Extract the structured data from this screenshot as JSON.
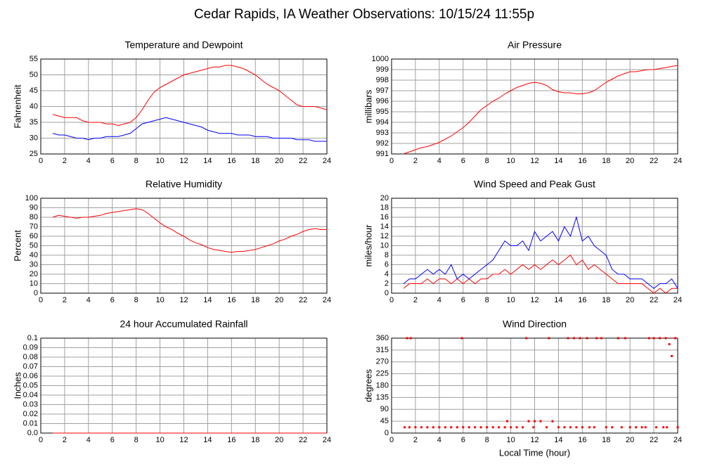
{
  "title": "Cedar Rapids, IA Weather Observations: 10/15/24 11:55p",
  "chart_data": [
    {
      "type": "line",
      "title": "Temperature and Dewpoint",
      "ylabel": "Fahrenheit",
      "x": [
        1,
        1.5,
        2,
        2.5,
        3,
        3.5,
        4,
        4.5,
        5,
        5.5,
        6,
        6.5,
        7,
        7.5,
        8,
        8.5,
        9,
        9.5,
        10,
        10.5,
        11,
        11.5,
        12,
        12.5,
        13,
        13.5,
        14,
        14.5,
        15,
        15.5,
        16,
        16.5,
        17,
        17.5,
        18,
        18.5,
        19,
        19.5,
        20,
        20.5,
        21,
        21.5,
        22,
        22.5,
        23,
        23.5,
        24
      ],
      "series": [
        {
          "color": "#ff0000",
          "values": [
            37.5,
            37,
            36.5,
            36.5,
            36.5,
            35.5,
            35,
            35,
            35,
            34.5,
            34.5,
            34,
            34.5,
            35,
            36.5,
            39,
            42,
            44.5,
            46,
            47,
            48,
            49,
            50,
            50.5,
            51,
            51.5,
            52,
            52.5,
            52.5,
            53,
            53,
            52.5,
            52,
            51,
            50,
            48.5,
            47,
            46,
            45,
            43.5,
            42,
            40.5,
            40,
            40,
            40,
            39.5,
            39
          ]
        },
        {
          "color": "#0000ff",
          "values": [
            31.5,
            31,
            31,
            30.5,
            30,
            30,
            29.5,
            30,
            30,
            30.5,
            30.5,
            30.5,
            31,
            31.5,
            33,
            34.5,
            35,
            35.5,
            36,
            36.5,
            36,
            35.5,
            35,
            34.5,
            34,
            33.5,
            32.5,
            32,
            31.5,
            31.5,
            31.5,
            31,
            31,
            31,
            30.5,
            30.5,
            30.5,
            30,
            30,
            30,
            30,
            29.5,
            29.5,
            29.5,
            29,
            29,
            29
          ]
        }
      ],
      "xlim": [
        0,
        24
      ],
      "xticks": [
        0,
        2,
        4,
        6,
        8,
        10,
        12,
        14,
        16,
        18,
        20,
        22,
        24
      ],
      "ylim": [
        25,
        55
      ],
      "yticks": [
        25,
        30,
        35,
        40,
        45,
        50,
        55
      ],
      "grid": true
    },
    {
      "type": "line",
      "title": "Air Pressure",
      "ylabel": "millibars",
      "x": [
        1,
        1.5,
        2,
        2.5,
        3,
        3.5,
        4,
        4.5,
        5,
        5.5,
        6,
        6.5,
        7,
        7.5,
        8,
        8.5,
        9,
        9.5,
        10,
        10.5,
        11,
        11.5,
        12,
        12.5,
        13,
        13.5,
        14,
        14.5,
        15,
        15.5,
        16,
        16.5,
        17,
        17.5,
        18,
        18.5,
        19,
        19.5,
        20,
        20.5,
        21,
        21.5,
        22,
        22.5,
        23,
        23.5,
        24
      ],
      "series": [
        {
          "color": "#ff0000",
          "values": [
            991,
            991.2,
            991.4,
            991.6,
            991.7,
            991.9,
            992.1,
            992.4,
            992.7,
            993.1,
            993.5,
            994,
            994.6,
            995.2,
            995.6,
            996,
            996.3,
            996.7,
            997,
            997.3,
            997.5,
            997.7,
            997.8,
            997.7,
            997.5,
            997.1,
            996.9,
            996.8,
            996.8,
            996.7,
            996.7,
            996.8,
            997,
            997.4,
            997.8,
            998.1,
            998.4,
            998.6,
            998.8,
            998.8,
            998.9,
            999,
            999,
            999.1,
            999.2,
            999.3,
            999.4
          ]
        }
      ],
      "xlim": [
        0,
        24
      ],
      "xticks": [
        0,
        2,
        4,
        6,
        8,
        10,
        12,
        14,
        16,
        18,
        20,
        22,
        24
      ],
      "ylim": [
        991,
        1000
      ],
      "yticks": [
        991,
        992,
        993,
        994,
        995,
        996,
        997,
        998,
        999,
        1000
      ],
      "grid": true
    },
    {
      "type": "line",
      "title": "Relative Humidity",
      "ylabel": "Percent",
      "x": [
        1,
        1.5,
        2,
        2.5,
        3,
        3.5,
        4,
        4.5,
        5,
        5.5,
        6,
        6.5,
        7,
        7.5,
        8,
        8.5,
        9,
        9.5,
        10,
        10.5,
        11,
        11.5,
        12,
        12.5,
        13,
        13.5,
        14,
        14.5,
        15,
        15.5,
        16,
        16.5,
        17,
        17.5,
        18,
        18.5,
        19,
        19.5,
        20,
        20.5,
        21,
        21.5,
        22,
        22.5,
        23,
        23.5,
        24
      ],
      "series": [
        {
          "color": "#ff0000",
          "values": [
            80,
            82,
            81,
            80,
            79,
            80,
            80,
            81,
            82,
            84,
            85,
            86,
            87,
            88,
            89,
            88,
            84,
            79,
            74,
            70,
            67,
            63,
            60,
            56,
            53,
            51,
            48,
            46,
            45,
            44,
            43,
            44,
            44,
            45,
            46,
            48,
            50,
            52,
            55,
            57,
            60,
            62,
            65,
            67,
            68,
            67,
            67
          ]
        }
      ],
      "xlim": [
        0,
        24
      ],
      "xticks": [
        0,
        2,
        4,
        6,
        8,
        10,
        12,
        14,
        16,
        18,
        20,
        22,
        24
      ],
      "ylim": [
        0,
        100
      ],
      "yticks": [
        0,
        10,
        20,
        30,
        40,
        50,
        60,
        70,
        80,
        90,
        100
      ],
      "grid": true
    },
    {
      "type": "line",
      "title": "Wind Speed and Peak Gust",
      "ylabel": "miles/hour",
      "x": [
        1,
        1.5,
        2,
        2.5,
        3,
        3.5,
        4,
        4.5,
        5,
        5.5,
        6,
        6.5,
        7,
        7.5,
        8,
        8.5,
        9,
        9.5,
        10,
        10.5,
        11,
        11.5,
        12,
        12.5,
        13,
        13.5,
        14,
        14.5,
        15,
        15.5,
        16,
        16.5,
        17,
        17.5,
        18,
        18.5,
        19,
        19.5,
        20,
        20.5,
        21,
        21.5,
        22,
        22.5,
        23,
        23.5,
        24
      ],
      "series": [
        {
          "color": "#ff0000",
          "values": [
            1,
            2,
            2,
            2,
            3,
            2,
            3,
            3,
            2,
            3,
            2,
            3,
            2,
            3,
            3,
            4,
            4,
            5,
            4,
            5,
            6,
            5,
            6,
            5,
            6,
            7,
            6,
            7,
            8,
            6,
            7,
            5,
            6,
            5,
            4,
            3,
            2,
            2,
            2,
            2,
            2,
            1,
            0,
            1,
            0,
            1,
            1
          ]
        },
        {
          "color": "#0000ff",
          "values": [
            2,
            3,
            3,
            4,
            5,
            4,
            5,
            4,
            6,
            3,
            4,
            3,
            4,
            5,
            6,
            7,
            9,
            11,
            10,
            10,
            11,
            9,
            13,
            11,
            12,
            13,
            11,
            14,
            12,
            16,
            11,
            12,
            10,
            9,
            8,
            5,
            4,
            4,
            3,
            3,
            3,
            2,
            1,
            2,
            2,
            3,
            1
          ]
        }
      ],
      "xlim": [
        0,
        24
      ],
      "xticks": [
        0,
        2,
        4,
        6,
        8,
        10,
        12,
        14,
        16,
        18,
        20,
        22,
        24
      ],
      "ylim": [
        0,
        20
      ],
      "yticks": [
        0,
        2,
        4,
        6,
        8,
        10,
        12,
        14,
        16,
        18,
        20
      ],
      "grid": true
    },
    {
      "type": "line",
      "title": "24 hour Accumulated Rainfall",
      "ylabel": "Inches",
      "x": [
        1,
        24
      ],
      "series": [
        {
          "color": "#ff0000",
          "values": [
            0,
            0
          ]
        }
      ],
      "xlim": [
        0,
        24
      ],
      "xticks": [
        0,
        2,
        4,
        6,
        8,
        10,
        12,
        14,
        16,
        18,
        20,
        22,
        24
      ],
      "ylim": [
        0,
        0.1
      ],
      "yticks": [
        {
          "value": 0,
          "label": "0.0"
        },
        0.01,
        0.02,
        0.03,
        0.04,
        0.05,
        0.06,
        0.07,
        0.08,
        0.09,
        0.1
      ],
      "grid": true
    },
    {
      "type": "scatter",
      "title": "Wind Direction",
      "ylabel": "degrees",
      "xlabel": "Local Time (hour)",
      "x": [
        1.1,
        1.3,
        1.5,
        1.6,
        2,
        2.5,
        3,
        3.5,
        4,
        4.5,
        5,
        5.5,
        5.9,
        6,
        6.5,
        7,
        7.5,
        8,
        8.5,
        9,
        9.5,
        9.7,
        10,
        10.5,
        11,
        11.3,
        11.5,
        11.9,
        12,
        12.5,
        13,
        13.2,
        13.5,
        14,
        14.5,
        14.8,
        15,
        15.3,
        15.5,
        15.8,
        16,
        16.4,
        16.6,
        17,
        17.2,
        17.6,
        18,
        18.5,
        19,
        19.3,
        19.6,
        20,
        20.5,
        21,
        21.3,
        21.6,
        22,
        22.2,
        22.5,
        22.8,
        23,
        23.1,
        23.3,
        23.5,
        23.8,
        24
      ],
      "values": [
        22,
        360,
        22,
        360,
        22,
        22,
        22,
        22,
        22,
        22,
        22,
        22,
        360,
        22,
        22,
        22,
        22,
        22,
        22,
        22,
        22,
        45,
        22,
        22,
        22,
        360,
        45,
        22,
        45,
        45,
        22,
        360,
        45,
        22,
        22,
        360,
        22,
        360,
        22,
        360,
        22,
        360,
        22,
        22,
        360,
        360,
        22,
        22,
        360,
        22,
        360,
        22,
        22,
        22,
        22,
        360,
        360,
        22,
        360,
        22,
        360,
        22,
        337,
        292,
        360,
        22
      ],
      "color": "#ff0000",
      "xlim": [
        0,
        24
      ],
      "xticks": [
        0,
        2,
        4,
        6,
        8,
        10,
        12,
        14,
        16,
        18,
        20,
        22,
        24
      ],
      "ylim": [
        0,
        360
      ],
      "yticks": [
        0,
        45,
        90,
        135,
        180,
        225,
        270,
        315,
        360
      ],
      "grid": true
    }
  ]
}
